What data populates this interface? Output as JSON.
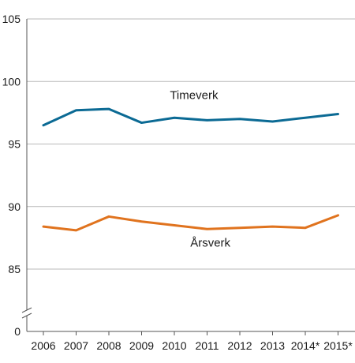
{
  "chart_data": {
    "type": "line",
    "x": [
      "2006",
      "2007",
      "2008",
      "2009",
      "2010",
      "2011",
      "2012",
      "2013",
      "2014*",
      "2015*"
    ],
    "y_ticks": [
      0,
      85,
      90,
      95,
      100,
      105
    ],
    "ylim": [
      80,
      105
    ],
    "axis_break": true,
    "grid": true,
    "legend": "none",
    "colors": {
      "Timeverk": "#0b6a94",
      "Årsverk": "#e0731e",
      "grid": "#b9b9b9",
      "axis": "#555555"
    },
    "series": [
      {
        "name": "Timeverk",
        "values": [
          96.5,
          97.7,
          97.8,
          96.7,
          97.1,
          96.9,
          97.0,
          96.8,
          97.1,
          97.4
        ]
      },
      {
        "name": "Årsverk",
        "values": [
          88.4,
          88.1,
          89.2,
          88.8,
          88.5,
          88.2,
          88.3,
          88.4,
          88.3,
          89.3
        ]
      }
    ]
  }
}
